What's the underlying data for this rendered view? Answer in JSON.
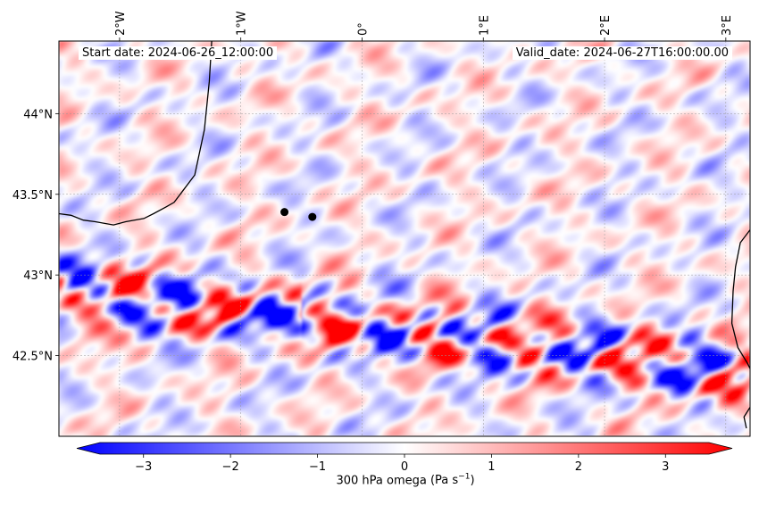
{
  "map": {
    "start_label": "Start date: 2024-06-26_12:00:00",
    "valid_label": "Valid_date: 2024-06-27T16:00:00.00",
    "variable": "300 hPa omega",
    "units_base": "(Pa s",
    "units_exp": "−1",
    "units_close": ")",
    "lon_range": [
      -2.5,
      3.2
    ],
    "lat_range": [
      42.0,
      44.45
    ],
    "lon_ticks": [
      {
        "value": -2,
        "label": "2°W"
      },
      {
        "value": -1,
        "label": "1°W"
      },
      {
        "value": 0,
        "label": "0°"
      },
      {
        "value": 1,
        "label": "1°E"
      },
      {
        "value": 2,
        "label": "2°E"
      },
      {
        "value": 3,
        "label": "3°E"
      }
    ],
    "lat_ticks": [
      {
        "value": 44.0,
        "label": "44°N"
      },
      {
        "value": 43.5,
        "label": "43.5°N"
      },
      {
        "value": 43.0,
        "label": "43°N"
      },
      {
        "value": 42.5,
        "label": "42.5°N"
      }
    ],
    "points": [
      {
        "lon": -0.64,
        "lat": 43.39
      },
      {
        "lon": -0.41,
        "lat": 43.36
      }
    ],
    "coastlines": [
      [
        [
          -1.24,
          44.45
        ],
        [
          -1.26,
          44.2
        ],
        [
          -1.3,
          43.9
        ],
        [
          -1.38,
          43.62
        ],
        [
          -1.48,
          43.52
        ],
        [
          -1.55,
          43.45
        ],
        [
          -1.62,
          43.42
        ],
        [
          -1.72,
          43.38
        ],
        [
          -1.8,
          43.35
        ],
        [
          -1.95,
          43.33
        ],
        [
          -2.05,
          43.31
        ],
        [
          -2.2,
          43.33
        ],
        [
          -2.3,
          43.34
        ],
        [
          -2.4,
          43.37
        ],
        [
          -2.5,
          43.38
        ]
      ],
      [
        [
          3.2,
          43.28
        ],
        [
          3.12,
          43.2
        ],
        [
          3.08,
          43.05
        ],
        [
          3.06,
          42.9
        ],
        [
          3.05,
          42.7
        ],
        [
          3.1,
          42.55
        ],
        [
          3.18,
          42.45
        ],
        [
          3.2,
          42.42
        ]
      ],
      [
        [
          3.2,
          42.18
        ],
        [
          3.15,
          42.12
        ],
        [
          3.17,
          42.05
        ]
      ]
    ]
  },
  "colorbar": {
    "vmin": -3.5,
    "vmax": 3.5,
    "ticks": [
      {
        "value": -3,
        "label": "−3"
      },
      {
        "value": -2,
        "label": "−2"
      },
      {
        "value": -1,
        "label": "−1"
      },
      {
        "value": 0,
        "label": "0"
      },
      {
        "value": 1,
        "label": "1"
      },
      {
        "value": 2,
        "label": "2"
      },
      {
        "value": 3,
        "label": "3"
      }
    ],
    "colors": {
      "low": "#0000ff",
      "mid": "#ffffff",
      "high": "#ff0000"
    }
  }
}
